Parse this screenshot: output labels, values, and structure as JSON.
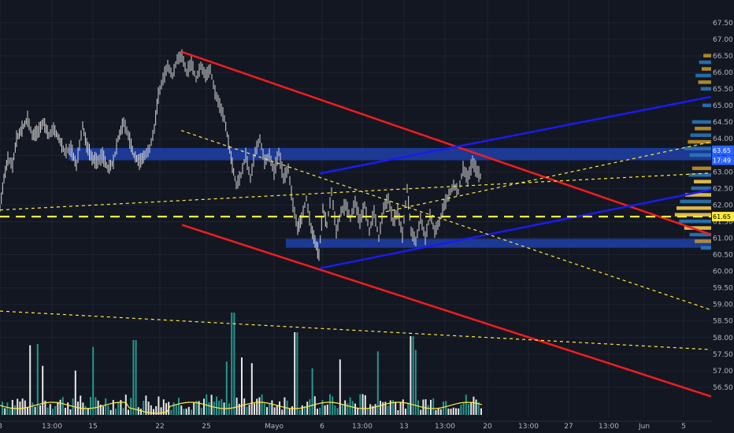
{
  "chart_data": {
    "type": "candlestick",
    "timeframe_note": "",
    "x_axis": {
      "ticks": [
        {
          "label": "8",
          "t": 0
        },
        {
          "label": "13:00",
          "t": 66
        },
        {
          "label": "15",
          "t": 118
        },
        {
          "label": "22",
          "t": 203
        },
        {
          "label": "25",
          "t": 262
        },
        {
          "label": "Mayo",
          "t": 348
        },
        {
          "label": "6",
          "t": 409
        },
        {
          "label": "13:00",
          "t": 460
        },
        {
          "label": "13",
          "t": 513
        },
        {
          "label": "13:00",
          "t": 565
        },
        {
          "label": "20",
          "t": 619
        },
        {
          "label": "13:00",
          "t": 671
        },
        {
          "label": "27",
          "t": 722
        },
        {
          "label": "13:00",
          "t": 773
        },
        {
          "label": "Jun",
          "t": 818
        },
        {
          "label": "5",
          "t": 868
        }
      ],
      "range": [
        0,
        932
      ]
    },
    "y_axis": {
      "min": 56.0,
      "max": 67.9,
      "step": 0.5,
      "ticks": [
        "67.50",
        "67.00",
        "66.50",
        "66.00",
        "65.50",
        "65.00",
        "64.50",
        "64.00",
        "63.50",
        "63.00",
        "62.50",
        "62.00",
        "61.50",
        "61.00",
        "60.50",
        "60.00",
        "59.50",
        "59.00",
        "58.50",
        "58.00",
        "57.50",
        "57.00",
        "56.50"
      ]
    },
    "price_path": [
      [
        0,
        61.9
      ],
      [
        5,
        62.8
      ],
      [
        10,
        63.4
      ],
      [
        16,
        63.2
      ],
      [
        21,
        64.0
      ],
      [
        28,
        64.3
      ],
      [
        35,
        64.6
      ],
      [
        41,
        64.1
      ],
      [
        48,
        64.2
      ],
      [
        55,
        64.5
      ],
      [
        62,
        64.1
      ],
      [
        68,
        64.3
      ],
      [
        75,
        64.0
      ],
      [
        82,
        63.6
      ],
      [
        90,
        63.7
      ],
      [
        97,
        63.2
      ],
      [
        105,
        64.4
      ],
      [
        110,
        63.8
      ],
      [
        117,
        63.4
      ],
      [
        124,
        63.3
      ],
      [
        130,
        63.5
      ],
      [
        137,
        63.1
      ],
      [
        144,
        63.3
      ],
      [
        150,
        64.0
      ],
      [
        157,
        64.5
      ],
      [
        163,
        64.1
      ],
      [
        170,
        63.5
      ],
      [
        177,
        63.3
      ],
      [
        184,
        63.5
      ],
      [
        190,
        63.7
      ],
      [
        196,
        64.3
      ],
      [
        201,
        65.3
      ],
      [
        207,
        65.8
      ],
      [
        213,
        66.2
      ],
      [
        219,
        65.9
      ],
      [
        225,
        66.4
      ],
      [
        231,
        66.5
      ],
      [
        237,
        66.0
      ],
      [
        243,
        66.3
      ],
      [
        249,
        65.8
      ],
      [
        255,
        66.2
      ],
      [
        261,
        65.9
      ],
      [
        267,
        66.1
      ],
      [
        273,
        65.4
      ],
      [
        279,
        65.0
      ],
      [
        285,
        64.6
      ],
      [
        290,
        63.9
      ],
      [
        295,
        63.2
      ],
      [
        300,
        62.6
      ],
      [
        306,
        62.9
      ],
      [
        312,
        63.5
      ],
      [
        318,
        62.8
      ],
      [
        324,
        63.6
      ],
      [
        330,
        64.0
      ],
      [
        336,
        63.3
      ],
      [
        342,
        63.5
      ],
      [
        348,
        63.0
      ],
      [
        354,
        63.6
      ],
      [
        360,
        62.8
      ],
      [
        366,
        63.1
      ],
      [
        372,
        62.0
      ],
      [
        378,
        61.3
      ],
      [
        383,
        61.6
      ],
      [
        389,
        62.2
      ],
      [
        395,
        61.3
      ],
      [
        400,
        60.9
      ],
      [
        405,
        60.5
      ],
      [
        410,
        61.9
      ],
      [
        415,
        61.4
      ],
      [
        421,
        62.4
      ],
      [
        427,
        61.2
      ],
      [
        433,
        61.8
      ],
      [
        439,
        62.0
      ],
      [
        445,
        61.6
      ],
      [
        451,
        62.1
      ],
      [
        457,
        61.5
      ],
      [
        463,
        62.0
      ],
      [
        469,
        61.2
      ],
      [
        475,
        61.8
      ],
      [
        481,
        61.0
      ],
      [
        487,
        61.9
      ],
      [
        493,
        62.2
      ],
      [
        499,
        61.5
      ],
      [
        505,
        61.8
      ],
      [
        511,
        61.1
      ],
      [
        517,
        62.5
      ],
      [
        522,
        61.2
      ],
      [
        528,
        60.9
      ],
      [
        534,
        61.6
      ],
      [
        540,
        61.0
      ],
      [
        546,
        61.7
      ],
      [
        552,
        61.2
      ],
      [
        558,
        61.5
      ],
      [
        564,
        62.0
      ],
      [
        570,
        62.3
      ],
      [
        576,
        62.6
      ],
      [
        582,
        62.4
      ],
      [
        588,
        63.1
      ],
      [
        594,
        62.8
      ],
      [
        600,
        63.3
      ],
      [
        606,
        63.0
      ],
      [
        612,
        62.8
      ]
    ],
    "horizontal_levels": [
      {
        "price": 61.65,
        "style": "dashed",
        "color": "#ffeb3b",
        "label": "61.65",
        "label_bg": "#ffeb3b"
      }
    ],
    "price_tags": [
      {
        "price": 63.65,
        "label": "63.65",
        "bg": "#2962ff"
      },
      {
        "price": 63.35,
        "label": "17:49",
        "bg": "#2962ff"
      }
    ],
    "zones": [
      {
        "name": "resistance-zone",
        "t_from": 87,
        "t_to": 932,
        "y_from": 63.35,
        "y_to": 63.72,
        "color": "#1e3fa8"
      },
      {
        "name": "support-zone",
        "t_from": 363,
        "t_to": 932,
        "y_from": 60.71,
        "y_to": 60.98,
        "color": "#1e3fa8"
      }
    ],
    "trendlines": [
      {
        "name": "red-channel-top",
        "color": "#f21d1d",
        "width": 2.5,
        "style": "solid",
        "p1": [
          231,
          66.62
        ],
        "p2": [
          932,
          60.87
        ]
      },
      {
        "name": "red-channel-bottom",
        "color": "#f21d1d",
        "width": 2.5,
        "style": "solid",
        "p1": [
          231,
          61.4
        ],
        "p2": [
          932,
          56.0
        ]
      },
      {
        "name": "blue-channel-top",
        "color": "#1b1bf0",
        "width": 2.5,
        "style": "solid",
        "p1": [
          406,
          62.95
        ],
        "p2": [
          932,
          65.4
        ]
      },
      {
        "name": "blue-channel-bottom",
        "color": "#1b1bf0",
        "width": 2.5,
        "style": "solid",
        "p1": [
          406,
          60.09
        ],
        "p2": [
          932,
          62.6
        ]
      },
      {
        "name": "yellow-dotted-long",
        "color": "#ffeb3b",
        "width": 1.2,
        "style": "dotted",
        "p1": [
          0,
          61.85
        ],
        "p2": [
          932,
          63.0
        ]
      },
      {
        "name": "yellow-dotted-rising",
        "color": "#ffeb3b",
        "width": 1.2,
        "style": "dotted",
        "p1": [
          490,
          61.8
        ],
        "p2": [
          932,
          64.05
        ]
      },
      {
        "name": "yellow-dotted-falling",
        "color": "#ffeb3b",
        "width": 1.2,
        "style": "dotted",
        "p1": [
          230,
          64.25
        ],
        "p2": [
          932,
          58.6
        ]
      },
      {
        "name": "yellow-dotted-lower",
        "color": "#ffeb3b",
        "width": 1.2,
        "style": "dotted",
        "p1": [
          0,
          58.8
        ],
        "p2": [
          932,
          57.6
        ]
      }
    ],
    "volume_profile": {
      "bins": [
        {
          "y": 66.5,
          "v": 18,
          "c": "#c89a2c"
        },
        {
          "y": 66.3,
          "v": 28,
          "c": "#2b7bbd"
        },
        {
          "y": 66.1,
          "v": 22,
          "c": "#c89a2c"
        },
        {
          "y": 65.9,
          "v": 36,
          "c": "#2b7bbd"
        },
        {
          "y": 65.7,
          "v": 30,
          "c": "#c89a2c"
        },
        {
          "y": 65.5,
          "v": 24,
          "c": "#2b7bbd"
        },
        {
          "y": 65.0,
          "v": 20,
          "c": "#2b7bbd"
        },
        {
          "y": 64.5,
          "v": 44,
          "c": "#2b7bbd"
        },
        {
          "y": 64.3,
          "v": 38,
          "c": "#c89a2c"
        },
        {
          "y": 64.1,
          "v": 48,
          "c": "#2b7bbd"
        },
        {
          "y": 63.9,
          "v": 54,
          "c": "#c89a2c"
        },
        {
          "y": 63.7,
          "v": 62,
          "c": "#2b7bbd"
        },
        {
          "y": 63.5,
          "v": 50,
          "c": "#2b7bbd"
        },
        {
          "y": 63.1,
          "v": 44,
          "c": "#c89a2c"
        },
        {
          "y": 62.9,
          "v": 52,
          "c": "#2b7bbd"
        },
        {
          "y": 62.7,
          "v": 40,
          "c": "#ffd54f"
        },
        {
          "y": 62.5,
          "v": 46,
          "c": "#2b7bbd"
        },
        {
          "y": 62.3,
          "v": 60,
          "c": "#ffd54f"
        },
        {
          "y": 62.1,
          "v": 72,
          "c": "#2b7bbd"
        },
        {
          "y": 61.9,
          "v": 80,
          "c": "#ffd54f"
        },
        {
          "y": 61.7,
          "v": 84,
          "c": "#ffd54f"
        },
        {
          "y": 61.5,
          "v": 74,
          "c": "#2b7bbd"
        },
        {
          "y": 61.3,
          "v": 62,
          "c": "#ffd54f"
        },
        {
          "y": 61.1,
          "v": 50,
          "c": "#2b7bbd"
        },
        {
          "y": 60.9,
          "v": 38,
          "c": "#c89a2c"
        },
        {
          "y": 60.7,
          "v": 24,
          "c": "#2b7bbd"
        }
      ]
    },
    "volume_series": {
      "up_color": "#26a69a",
      "down_color": "#ffffff",
      "ma_color": "#ffeb3b",
      "ma_level": 0.3
    }
  }
}
